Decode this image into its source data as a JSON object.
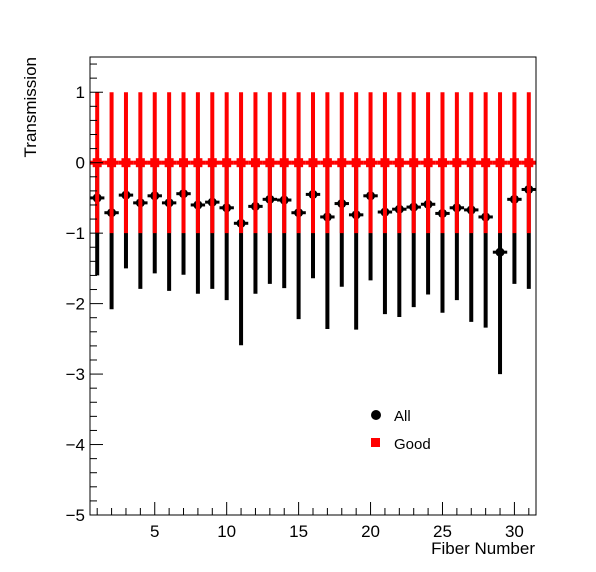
{
  "chart_data": {
    "type": "scatter",
    "xlabel": "Fiber Number",
    "ylabel": "Transmission",
    "xlim": [
      0.5,
      31.5
    ],
    "ylim": [
      -5,
      1.5
    ],
    "x_ticks": [
      5,
      10,
      15,
      20,
      25,
      30
    ],
    "y_ticks": [
      -5,
      -4,
      -3,
      -2,
      -1,
      0,
      1
    ],
    "x_tick_labels": [
      "5",
      "10",
      "15",
      "20",
      "25",
      "30"
    ],
    "y_tick_labels": [
      "−5",
      "−4",
      "−3",
      "−2",
      "−1",
      "0",
      "1"
    ],
    "legend_position": "bottom-center",
    "x": [
      1,
      2,
      3,
      4,
      5,
      6,
      7,
      8,
      9,
      10,
      11,
      12,
      13,
      14,
      15,
      16,
      17,
      18,
      19,
      20,
      21,
      22,
      23,
      24,
      25,
      26,
      27,
      28,
      29,
      30,
      31
    ],
    "series": [
      {
        "name": "All",
        "color": "#000000",
        "marker": "circle",
        "values": [
          -0.5,
          -0.71,
          -0.46,
          -0.57,
          -0.47,
          -0.57,
          -0.44,
          -0.6,
          -0.56,
          -0.64,
          -0.86,
          -0.62,
          -0.52,
          -0.53,
          -0.71,
          -0.45,
          -0.77,
          -0.58,
          -0.74,
          -0.47,
          -0.7,
          -0.66,
          -0.63,
          -0.59,
          -0.72,
          -0.64,
          -0.67,
          -0.77,
          -1.27,
          -0.52,
          -0.38
        ],
        "err_low": [
          1.1,
          1.37,
          1.04,
          1.22,
          1.1,
          1.25,
          1.15,
          1.26,
          1.23,
          1.31,
          1.73,
          1.24,
          1.2,
          1.25,
          1.51,
          1.19,
          1.59,
          1.18,
          1.63,
          1.2,
          1.45,
          1.53,
          1.42,
          1.28,
          1.41,
          1.31,
          1.59,
          1.57,
          1.73,
          1.2,
          1.41
        ],
        "err_high": [
          0.5,
          0.71,
          0.46,
          0.57,
          0.47,
          0.57,
          0.44,
          0.6,
          0.56,
          0.64,
          0.86,
          0.62,
          0.52,
          0.53,
          0.71,
          0.45,
          0.77,
          0.58,
          0.74,
          0.47,
          0.7,
          0.66,
          0.63,
          0.59,
          0.72,
          0.64,
          0.67,
          0.77,
          1.27,
          0.52,
          0.38
        ]
      },
      {
        "name": "Good",
        "color": "#ff0000",
        "marker": "square",
        "values": [
          0,
          0,
          0,
          0,
          0,
          0,
          0,
          0,
          0,
          0,
          0,
          0,
          0,
          0,
          0,
          0,
          0,
          0,
          0,
          0,
          0,
          0,
          0,
          0,
          0,
          0,
          0,
          0,
          0,
          0,
          0
        ],
        "err_low": [
          1,
          1,
          1,
          1,
          1,
          1,
          1,
          1,
          1,
          1,
          1,
          1,
          1,
          1,
          1,
          1,
          1,
          1,
          1,
          1,
          1,
          1,
          1,
          1,
          1,
          1,
          1,
          1,
          1,
          1,
          1
        ],
        "err_high": [
          1,
          1,
          1,
          1,
          1,
          1,
          1,
          1,
          1,
          1,
          1,
          1,
          1,
          1,
          1,
          1,
          1,
          1,
          1,
          1,
          1,
          1,
          1,
          1,
          1,
          1,
          1,
          1,
          1,
          1,
          1
        ]
      }
    ]
  }
}
